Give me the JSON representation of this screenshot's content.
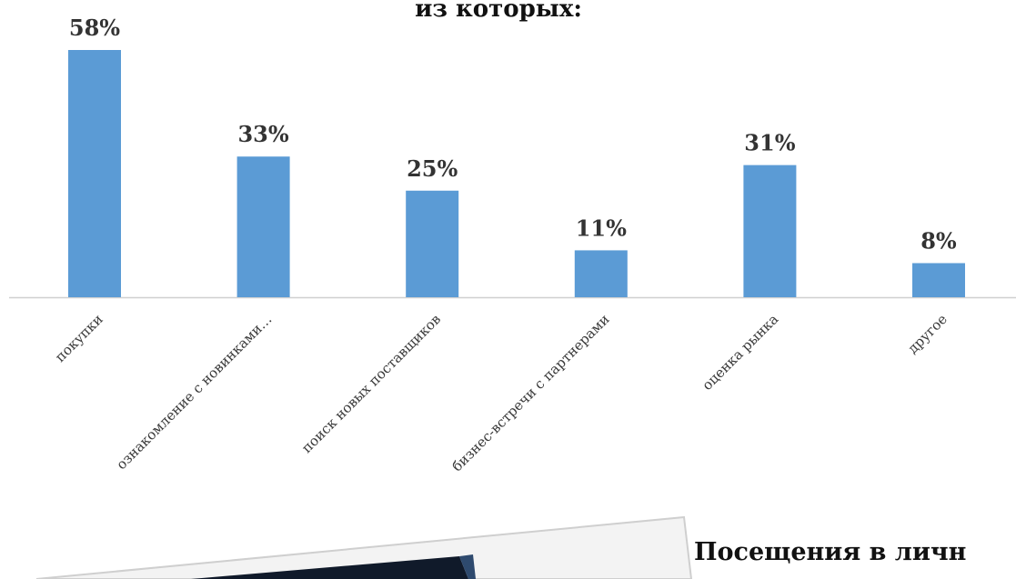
{
  "chart_data": {
    "type": "bar",
    "title": "из которых:",
    "categories": [
      "покупки",
      "ознакомление с новинками…",
      "поиск новых поставщиков",
      "бизнес-встречи с партнерами",
      "оценка рынка",
      "другое"
    ],
    "values": [
      58,
      33,
      25,
      11,
      31,
      8
    ],
    "value_labels": [
      "58%",
      "33%",
      "25%",
      "11%",
      "31%",
      "8%"
    ],
    "ylim": [
      0,
      60
    ],
    "grid": false,
    "legend": "none",
    "bar_color": "#5B9BD5"
  },
  "bottom_slide": {
    "title": "Посещения в личн"
  }
}
